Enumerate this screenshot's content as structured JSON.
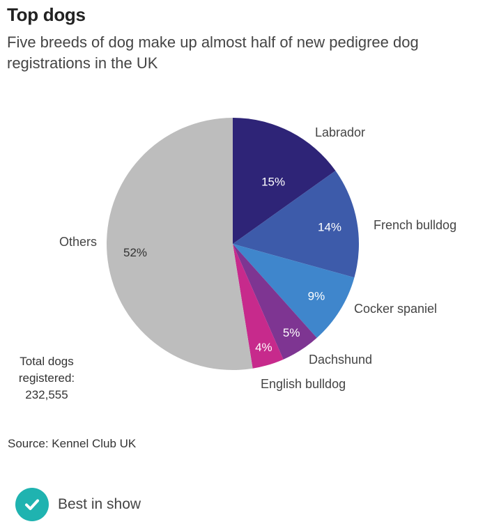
{
  "header": {
    "title": "Top dogs",
    "subtitle": "Five breeds of dog make up almost half of new pedigree dog registrations in the UK"
  },
  "chart_data": {
    "type": "pie",
    "title": "Top dogs",
    "subtitle": "Five breeds of dog make up almost half of new pedigree dog registrations in the UK",
    "slices": [
      {
        "label": "Labrador",
        "value": 15,
        "display": "15%",
        "color": "#2e2477"
      },
      {
        "label": "French bulldog",
        "value": 14,
        "display": "14%",
        "color": "#3d5baa"
      },
      {
        "label": "Cocker spaniel",
        "value": 9,
        "display": "9%",
        "color": "#3f86cc"
      },
      {
        "label": "Dachshund",
        "value": 5,
        "display": "5%",
        "color": "#7e3592"
      },
      {
        "label": "English bulldog",
        "value": 4,
        "display": "4%",
        "color": "#c72a8c"
      },
      {
        "label": "Others",
        "value": 52,
        "display": "52%",
        "color": "#bdbdbd"
      }
    ],
    "legend": "labels beside slices"
  },
  "notes": {
    "total_line1": "Total dogs",
    "total_line2": "registered:",
    "total_value": "232,555"
  },
  "source": "Source: Kennel Club UK",
  "footer": {
    "label": "Best in show",
    "icon": "check-circle-icon",
    "icon_color": "#1fb3b0"
  }
}
